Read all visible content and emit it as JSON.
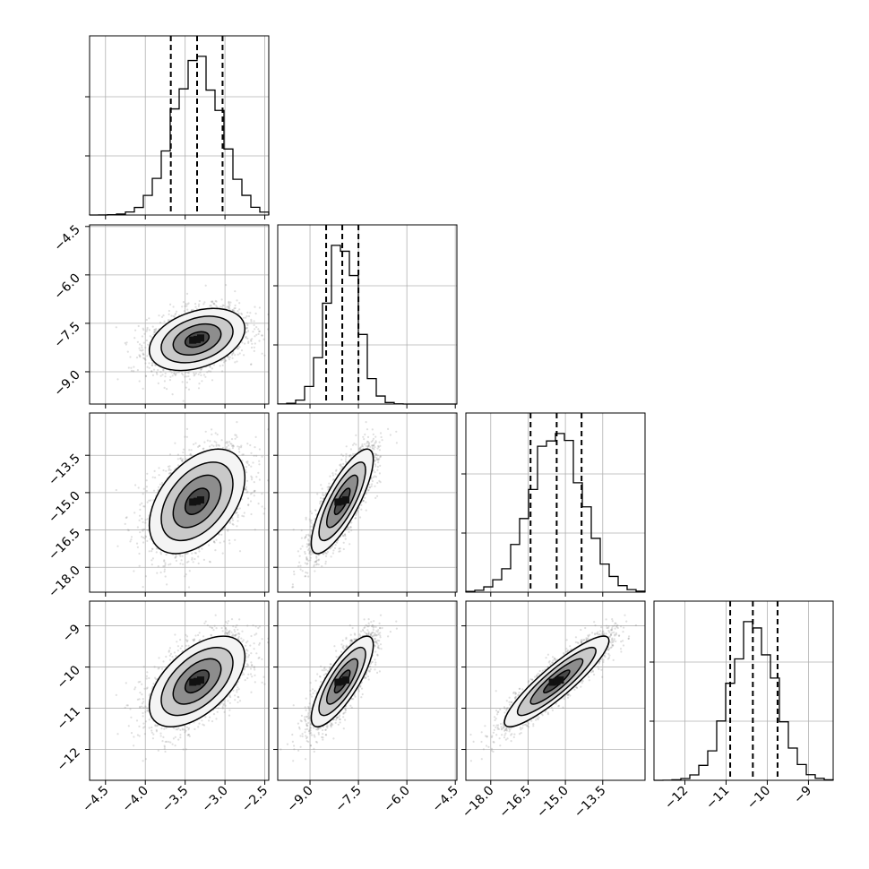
{
  "chart_data": {
    "type": "corner",
    "parameters": [
      {
        "range": [
          -4.7,
          -2.45
        ],
        "mean": -3.35,
        "sd": 0.3,
        "quantiles": [
          -3.68,
          -3.35,
          -3.03
        ],
        "ticks": [
          -4.5,
          -4.0,
          -3.5,
          -3.0,
          -2.5
        ],
        "tick_labels": [
          "−4.5",
          "−4.0",
          "−3.5",
          "−3.0",
          "−2.5"
        ]
      },
      {
        "range": [
          -10.0,
          -4.45
        ],
        "mean": -8.0,
        "sd": 0.48,
        "quantiles": [
          -8.5,
          -8.0,
          -7.5
        ],
        "ticks": [
          -9.0,
          -7.5,
          -6.0,
          -4.5
        ],
        "tick_labels": [
          "−9.0",
          "−7.5",
          "−6.0",
          "−4.5"
        ]
      },
      {
        "range": [
          -19.0,
          -11.8
        ],
        "mean": -15.35,
        "sd": 1.05,
        "quantiles": [
          -16.4,
          -15.35,
          -14.35
        ],
        "ticks": [
          -18.0,
          -16.5,
          -15.0,
          -13.5
        ],
        "tick_labels": [
          "−18.0",
          "−16.5",
          "−15.0",
          "−13.5"
        ]
      },
      {
        "range": [
          -12.75,
          -8.4
        ],
        "mean": -10.35,
        "sd": 0.55,
        "quantiles": [
          -10.9,
          -10.35,
          -9.75
        ],
        "ticks": [
          -12,
          -11,
          -10,
          -9
        ],
        "tick_labels": [
          "−12",
          "−11",
          "−10",
          "−9"
        ]
      }
    ],
    "correlations": [
      [
        1.0,
        0.35,
        0.45,
        0.55
      ],
      [
        0.35,
        1.0,
        0.8,
        0.8
      ],
      [
        0.45,
        0.8,
        1.0,
        0.9
      ],
      [
        0.55,
        0.8,
        0.9,
        1.0
      ]
    ],
    "histogram_bins": 20,
    "contour_levels": [
      0.5,
      1.0,
      1.5,
      2.0
    ],
    "grid": true,
    "colors": {
      "line": "#000000",
      "points": "#7f7f7f",
      "grid": "#b0b0b0"
    }
  }
}
